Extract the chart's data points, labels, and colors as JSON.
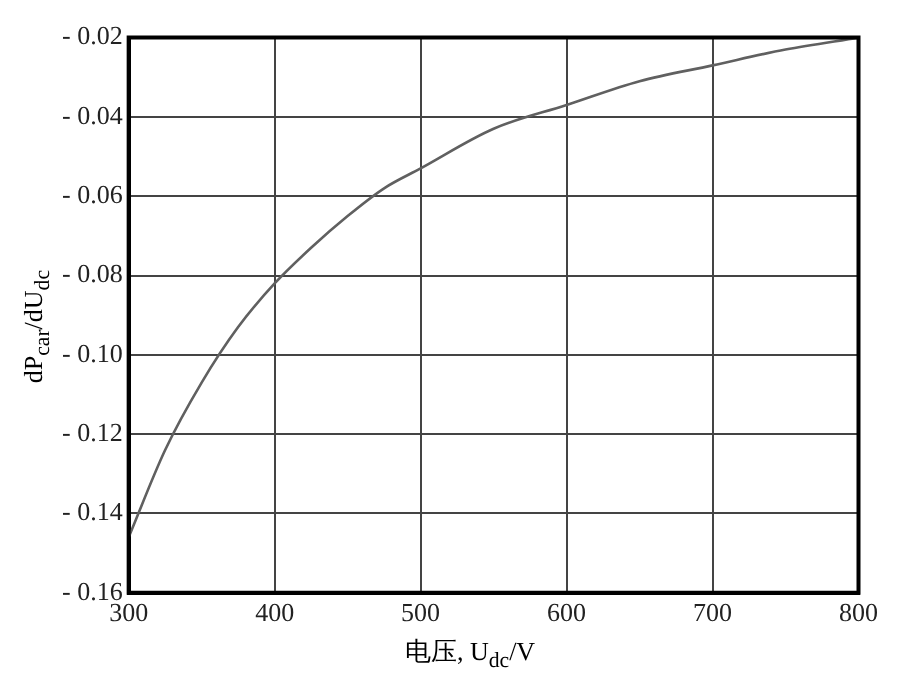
{
  "chart_data": {
    "type": "line",
    "xlabel": "电压, U$_{dc}$/V",
    "ylabel": "dP$_{car}$/dU$_{dc}$",
    "x": [
      300,
      325,
      350,
      375,
      400,
      425,
      450,
      475,
      500,
      550,
      600,
      650,
      700,
      750,
      800
    ],
    "series": [
      {
        "color": "#606060",
        "values": [
          -0.146,
          -0.124,
          -0.107,
          -0.093,
          -0.082,
          -0.073,
          -0.065,
          -0.058,
          -0.053,
          -0.043,
          -0.037,
          -0.031,
          -0.027,
          -0.023,
          -0.02
        ]
      }
    ],
    "xlim": [
      300,
      800
    ],
    "xticks": [
      300,
      400,
      500,
      600,
      700,
      800
    ],
    "ylim": [
      -0.16,
      -0.02
    ],
    "yticks": [
      {
        "value": -0.16,
        "label": "- 0.16"
      },
      {
        "value": -0.14,
        "label": "- 0.14"
      },
      {
        "value": -0.12,
        "label": "- 0.12"
      },
      {
        "value": -0.1,
        "label": "- 0.10"
      },
      {
        "value": -0.08,
        "label": "- 0.08"
      },
      {
        "value": -0.06,
        "label": "- 0.06"
      },
      {
        "value": -0.04,
        "label": "- 0.04"
      },
      {
        "value": -0.02,
        "label": "- 0.02"
      }
    ],
    "grid": true,
    "legend": false,
    "marker": "none",
    "line_style": "solid"
  }
}
